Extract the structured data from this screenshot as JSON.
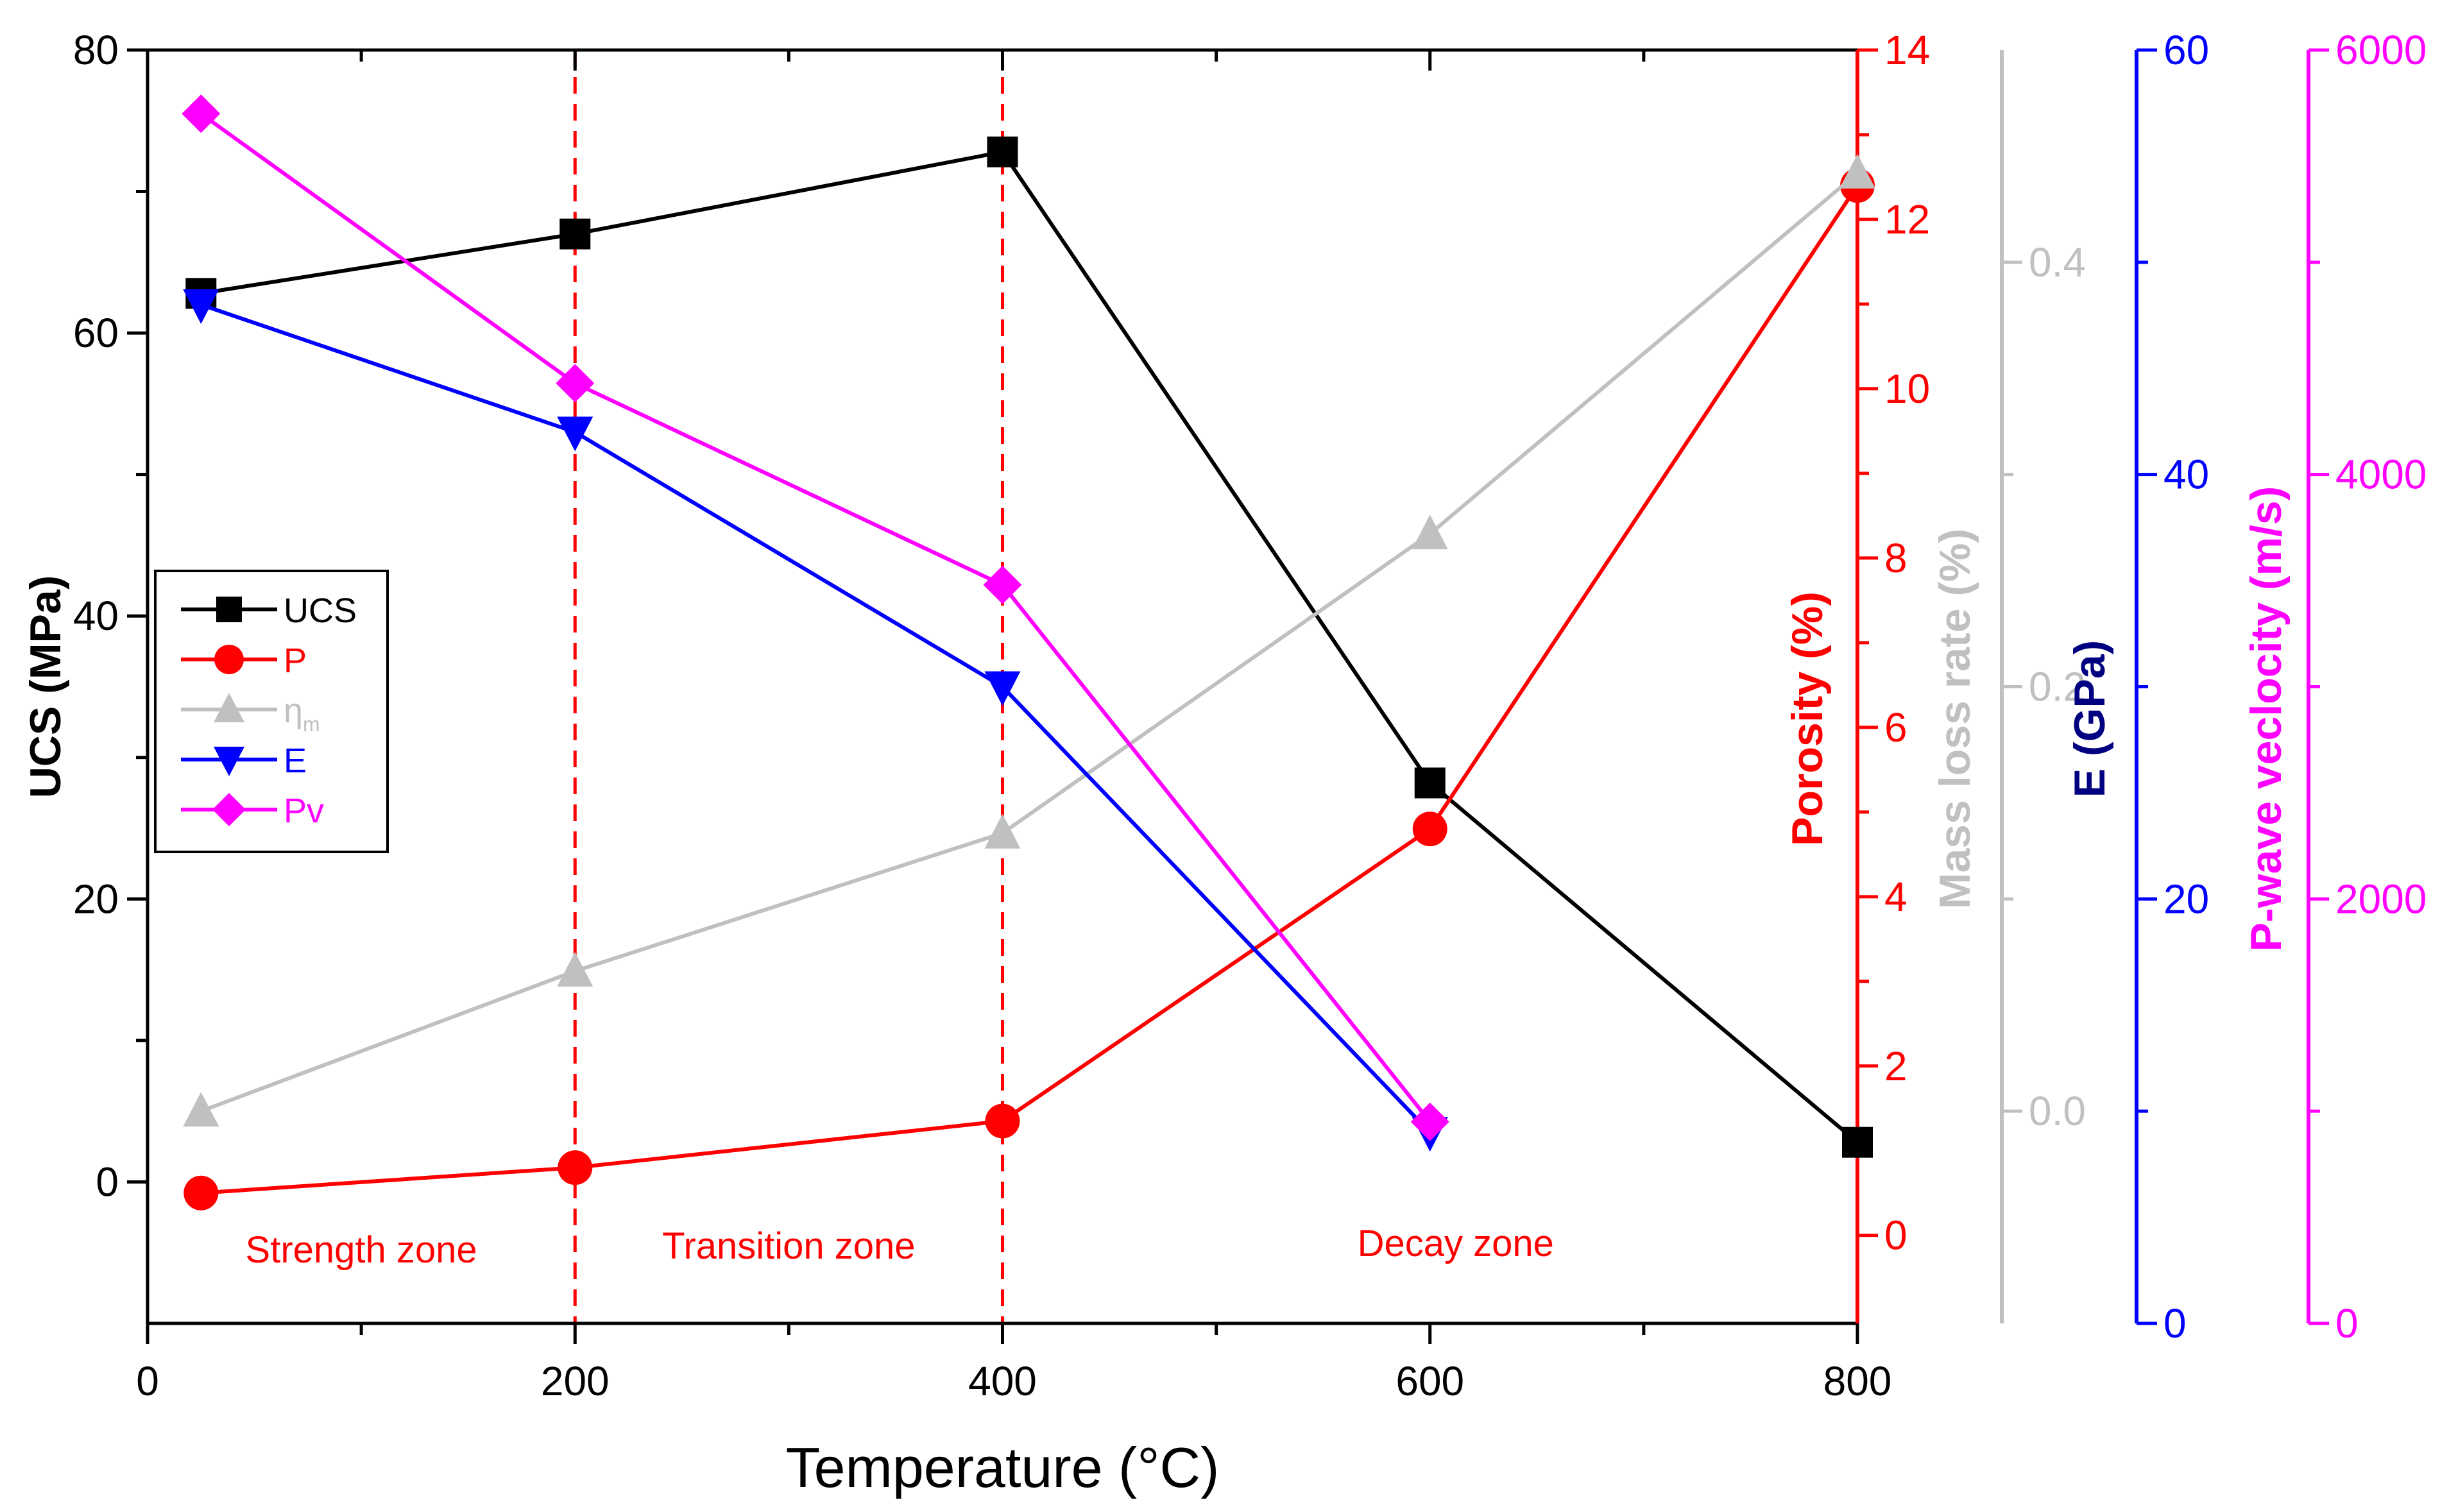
{
  "chart_data": {
    "type": "line",
    "xlabel": "Temperature (°C)",
    "xlim": [
      0,
      800
    ],
    "xticks": [
      0,
      200,
      400,
      600,
      800
    ],
    "axes": [
      {
        "id": "ucs",
        "label": "UCS (MPa)",
        "color": "#000000",
        "ylim": [
          -10,
          80
        ],
        "ticks": [
          0,
          20,
          40,
          60,
          80
        ],
        "tick_labels": [
          "0",
          "20",
          "40",
          "60",
          "80"
        ]
      },
      {
        "id": "p",
        "label": "Porosity (%)",
        "color": "#ff0000",
        "ylim": [
          -1.04,
          14
        ],
        "ticks": [
          0,
          2,
          4,
          6,
          8,
          10,
          12,
          14
        ],
        "tick_labels": [
          "0",
          "2",
          "4",
          "6",
          "8",
          "10",
          "12",
          "14"
        ]
      },
      {
        "id": "mass",
        "label": "Mass loss rate (%)",
        "color": "#c0c0c0",
        "ylim": [
          -0.1,
          0.5
        ],
        "ticks": [
          0.0,
          0.2,
          0.4
        ],
        "tick_labels": [
          "0.0",
          "0.2",
          "0.4"
        ]
      },
      {
        "id": "e",
        "label": "E (GPa)",
        "color": "#0000ff",
        "ylim": [
          0,
          60
        ],
        "ticks": [
          0,
          20,
          40,
          60
        ],
        "tick_labels": [
          "0",
          "20",
          "40",
          "60"
        ],
        "label_color": "#000080"
      },
      {
        "id": "pv",
        "label": "P-wave veclocity (m/s)",
        "color": "#ff00ff",
        "ylim": [
          0,
          6000
        ],
        "ticks": [
          0,
          2000,
          4000,
          6000
        ],
        "tick_labels": [
          "0",
          "2000",
          "4000",
          "6000"
        ]
      }
    ],
    "series": [
      {
        "name": "UCS",
        "axis": "ucs",
        "marker": "square",
        "color": "#000000",
        "x": [
          25,
          200,
          400,
          600,
          800
        ],
        "values": [
          62.8,
          67.0,
          72.8,
          28.2,
          2.8
        ]
      },
      {
        "name": "P",
        "axis": "p",
        "marker": "circle",
        "color": "#ff0000",
        "x": [
          25,
          200,
          400,
          600,
          800
        ],
        "values": [
          0.5,
          0.8,
          1.35,
          4.8,
          12.4
        ]
      },
      {
        "name": "ηm",
        "axis": "mass",
        "marker": "triangle-up",
        "color": "#c0c0c0",
        "x": [
          25,
          200,
          400,
          600,
          800
        ],
        "values": [
          0.0,
          0.066,
          0.131,
          0.272,
          0.442
        ]
      },
      {
        "name": "E",
        "axis": "e",
        "marker": "triangle-down",
        "color": "#0000ff",
        "x": [
          25,
          200,
          400,
          600
        ],
        "values": [
          48.0,
          42.0,
          30.0,
          9.0
        ]
      },
      {
        "name": "Pv",
        "axis": "pv",
        "marker": "diamond",
        "color": "#ff00ff",
        "x": [
          25,
          200,
          400,
          600
        ],
        "values": [
          5700,
          4430,
          3480,
          950
        ]
      }
    ],
    "zone_lines_x": [
      200,
      400
    ],
    "zones": [
      {
        "label": "Strength zone",
        "x": 100
      },
      {
        "label": "Transition zone",
        "x": 300
      },
      {
        "label": "Decay zone",
        "x": 612
      }
    ],
    "legend": {
      "position": "left",
      "entries": [
        {
          "label": "UCS",
          "marker": "square",
          "color": "#000000"
        },
        {
          "label": "P",
          "marker": "circle",
          "color": "#ff0000"
        },
        {
          "label": "η",
          "sub": "m",
          "marker": "triangle-up",
          "color": "#c0c0c0"
        },
        {
          "label": "E",
          "marker": "triangle-down",
          "color": "#0000ff"
        },
        {
          "label": "Pv",
          "marker": "diamond",
          "color": "#ff00ff"
        }
      ]
    }
  }
}
